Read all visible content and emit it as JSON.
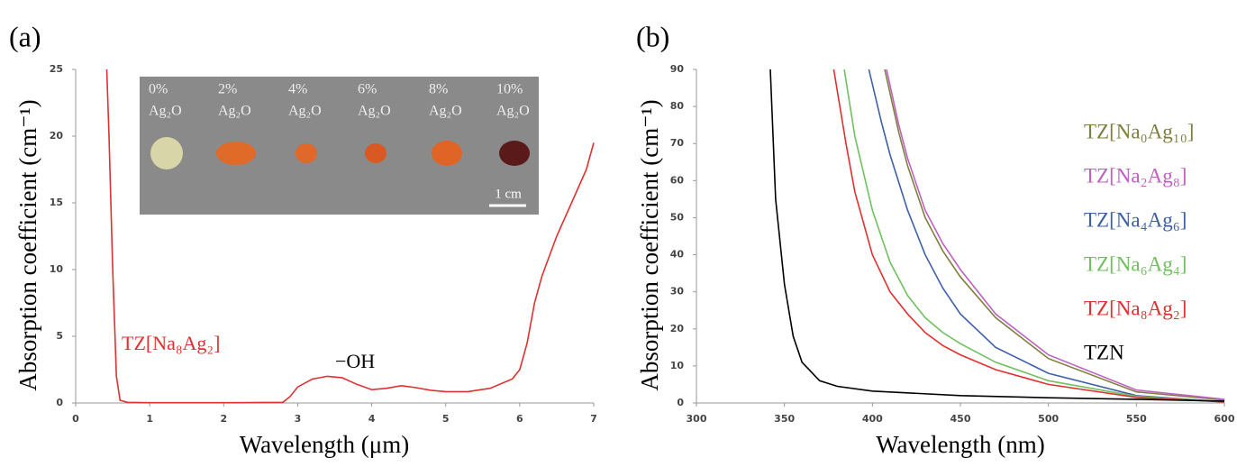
{
  "chart_data": [
    {
      "type": "line",
      "panel_label": "(a)",
      "x_label": "Wavelength  (μm)",
      "y_label": "Absorption coefficient (cm⁻¹)",
      "xlim": [
        0,
        7
      ],
      "xticks": [
        0,
        1,
        2,
        3,
        4,
        5,
        6,
        7
      ],
      "ylim": [
        0,
        25
      ],
      "yticks": [
        0,
        5,
        10,
        15,
        20,
        25
      ],
      "grid": false,
      "annotations": [
        "TZ[Na₈Ag₂]",
        "−OH"
      ],
      "series": [
        {
          "name": "TZ[Na₈Ag₂]",
          "color": "#e03030",
          "x": [
            0.42,
            0.45,
            0.5,
            0.55,
            0.6,
            0.7,
            1,
            2,
            2.8,
            2.9,
            3.0,
            3.2,
            3.4,
            3.6,
            3.8,
            4.0,
            4.2,
            4.4,
            4.6,
            4.8,
            5.0,
            5.3,
            5.6,
            5.9,
            6.0,
            6.1,
            6.2,
            6.3,
            6.5,
            6.7,
            6.9,
            7.0
          ],
          "values": [
            25,
            20,
            10,
            2,
            0.2,
            0.05,
            0.02,
            0.02,
            0.05,
            0.5,
            1.2,
            1.8,
            2.0,
            1.9,
            1.4,
            1.0,
            1.1,
            1.3,
            1.15,
            0.95,
            0.85,
            0.85,
            1.1,
            1.8,
            2.5,
            4.5,
            7.5,
            9.5,
            12.5,
            15,
            17.5,
            19.5
          ]
        }
      ],
      "inset": {
        "percent_labels": [
          "0%",
          "2%",
          "4%",
          "6%",
          "8%",
          "10%"
        ],
        "compound_label": "Ag₂O",
        "sample_colors": [
          "#d8d6a8",
          "#e06a28",
          "#e0682a",
          "#d85a22",
          "#e06426",
          "#5a1a1a"
        ],
        "scale_label": "1 cm"
      }
    },
    {
      "type": "line",
      "panel_label": "(b)",
      "x_label": "Wavelength  (nm)",
      "y_label": "Absorption coefficient (cm⁻¹)",
      "xlim": [
        300,
        600
      ],
      "xticks": [
        300,
        350,
        400,
        450,
        500,
        550,
        600
      ],
      "ylim": [
        0,
        90
      ],
      "yticks": [
        0,
        10,
        20,
        30,
        40,
        50,
        60,
        70,
        80,
        90
      ],
      "grid": false,
      "legend": "right",
      "series": [
        {
          "name": "TZ[Na₀Ag₁₀]",
          "color": "#7f7f3f",
          "x": [
            407,
            415,
            420,
            430,
            440,
            450,
            470,
            500,
            550,
            600
          ],
          "values": [
            90,
            73,
            64,
            50,
            41,
            34,
            23,
            12,
            3,
            0.8
          ]
        },
        {
          "name": "TZ[Na₂Ag₈]",
          "color": "#c060c0",
          "x": [
            408,
            415,
            420,
            430,
            440,
            450,
            470,
            500,
            550,
            600
          ],
          "values": [
            90,
            75,
            66,
            52,
            43,
            36,
            24,
            13,
            3.5,
            1
          ]
        },
        {
          "name": "TZ[Na₄Ag₆]",
          "color": "#3f5fa8",
          "x": [
            398,
            405,
            410,
            420,
            430,
            440,
            450,
            470,
            500,
            550,
            600
          ],
          "values": [
            90,
            76,
            67,
            52,
            40,
            31,
            24,
            15,
            8,
            2,
            0.3
          ]
        },
        {
          "name": "TZ[Na₆Ag₄]",
          "color": "#70c060",
          "x": [
            384,
            390,
            400,
            410,
            420,
            430,
            440,
            450,
            470,
            500,
            550,
            600
          ],
          "values": [
            90,
            72,
            52,
            38,
            29,
            23,
            19,
            16,
            11,
            6,
            1.8,
            0.3
          ]
        },
        {
          "name": "TZ[Na₈Ag₂]",
          "color": "#e03030",
          "x": [
            378,
            385,
            390,
            400,
            410,
            420,
            430,
            440,
            450,
            470,
            500,
            550,
            600
          ],
          "values": [
            90,
            70,
            57,
            40,
            30,
            24,
            19,
            15.5,
            13,
            9,
            5,
            1.5,
            0.3
          ]
        },
        {
          "name": "TZN",
          "color": "#000000",
          "x": [
            342,
            345,
            350,
            355,
            360,
            370,
            380,
            400,
            450,
            500,
            550,
            600
          ],
          "values": [
            90,
            55,
            32,
            18,
            11,
            6,
            4.5,
            3.2,
            2,
            1.4,
            1,
            0.5
          ]
        }
      ]
    }
  ]
}
